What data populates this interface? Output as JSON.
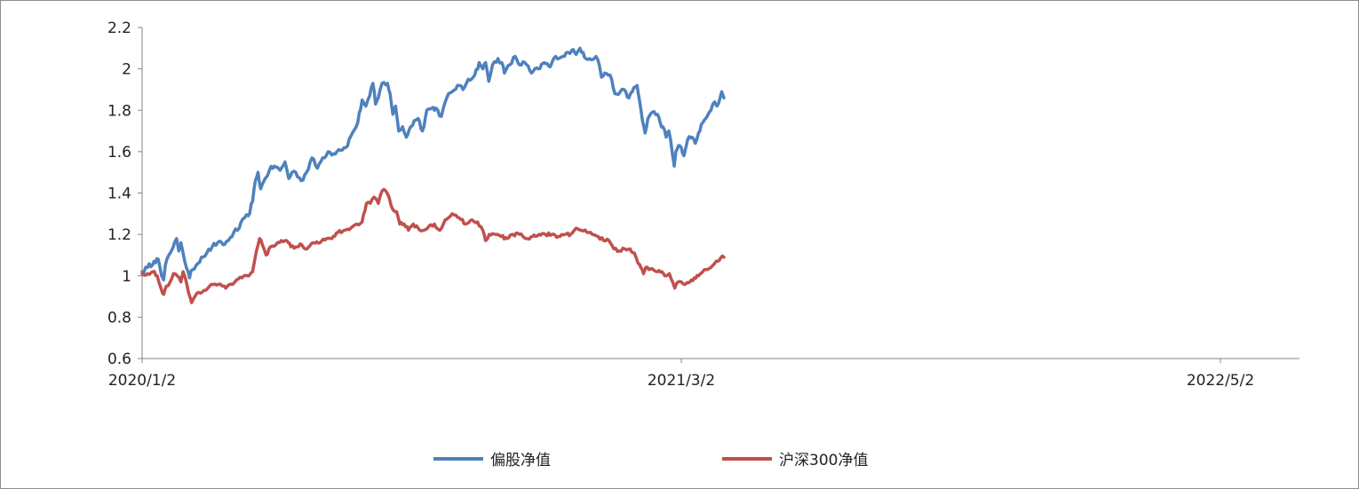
{
  "chart_data": {
    "type": "line",
    "x_tick_labels": [
      "2020/1/2",
      "2021/3/2",
      "2022/5/2"
    ],
    "y_tick_labels": [
      "0.6",
      "0.8",
      "1",
      "1.2",
      "1.4",
      "1.6",
      "1.8",
      "2",
      "2.2"
    ],
    "ylim": [
      0.6,
      2.2
    ],
    "grid": false,
    "legend_position": "bottom",
    "series": [
      {
        "name": "偏股净值",
        "color": "#4f81bd",
        "anchors": [
          [
            0.0,
            1.02
          ],
          [
            0.01,
            1.04
          ],
          [
            0.022,
            1.07
          ],
          [
            0.03,
            1.08
          ],
          [
            0.036,
            1.0
          ],
          [
            0.04,
            0.98
          ],
          [
            0.043,
            1.05
          ],
          [
            0.052,
            1.11
          ],
          [
            0.06,
            1.16
          ],
          [
            0.064,
            1.18
          ],
          [
            0.068,
            1.12
          ],
          [
            0.072,
            1.16
          ],
          [
            0.076,
            1.11
          ],
          [
            0.082,
            1.04
          ],
          [
            0.088,
            0.99
          ],
          [
            0.093,
            1.03
          ],
          [
            0.1,
            1.05
          ],
          [
            0.11,
            1.09
          ],
          [
            0.12,
            1.11
          ],
          [
            0.13,
            1.14
          ],
          [
            0.14,
            1.16
          ],
          [
            0.15,
            1.15
          ],
          [
            0.16,
            1.17
          ],
          [
            0.17,
            1.21
          ],
          [
            0.18,
            1.23
          ],
          [
            0.19,
            1.28
          ],
          [
            0.197,
            1.29
          ],
          [
            0.205,
            1.36
          ],
          [
            0.21,
            1.46
          ],
          [
            0.215,
            1.5
          ],
          [
            0.22,
            1.42
          ],
          [
            0.228,
            1.47
          ],
          [
            0.236,
            1.51
          ],
          [
            0.245,
            1.53
          ],
          [
            0.256,
            1.51
          ],
          [
            0.265,
            1.55
          ],
          [
            0.272,
            1.47
          ],
          [
            0.278,
            1.5
          ],
          [
            0.285,
            1.5
          ],
          [
            0.295,
            1.46
          ],
          [
            0.305,
            1.5
          ],
          [
            0.315,
            1.57
          ],
          [
            0.325,
            1.52
          ],
          [
            0.335,
            1.57
          ],
          [
            0.345,
            1.6
          ],
          [
            0.355,
            1.59
          ],
          [
            0.365,
            1.61
          ],
          [
            0.378,
            1.62
          ],
          [
            0.39,
            1.69
          ],
          [
            0.4,
            1.74
          ],
          [
            0.408,
            1.85
          ],
          [
            0.415,
            1.82
          ],
          [
            0.422,
            1.87
          ],
          [
            0.428,
            1.93
          ],
          [
            0.433,
            1.83
          ],
          [
            0.438,
            1.86
          ],
          [
            0.445,
            1.93
          ],
          [
            0.455,
            1.93
          ],
          [
            0.46,
            1.88
          ],
          [
            0.465,
            1.78
          ],
          [
            0.47,
            1.82
          ],
          [
            0.476,
            1.7
          ],
          [
            0.483,
            1.72
          ],
          [
            0.49,
            1.67
          ],
          [
            0.498,
            1.72
          ],
          [
            0.505,
            1.75
          ],
          [
            0.512,
            1.76
          ],
          [
            0.52,
            1.7
          ],
          [
            0.528,
            1.8
          ],
          [
            0.537,
            1.81
          ],
          [
            0.545,
            1.81
          ],
          [
            0.555,
            1.77
          ],
          [
            0.565,
            1.86
          ],
          [
            0.575,
            1.89
          ],
          [
            0.585,
            1.92
          ],
          [
            0.595,
            1.9
          ],
          [
            0.605,
            1.95
          ],
          [
            0.617,
            1.97
          ],
          [
            0.625,
            2.03
          ],
          [
            0.632,
            2.0
          ],
          [
            0.637,
            2.03
          ],
          [
            0.643,
            1.94
          ],
          [
            0.65,
            2.02
          ],
          [
            0.66,
            2.05
          ],
          [
            0.667,
            2.03
          ],
          [
            0.672,
            1.98
          ],
          [
            0.682,
            2.02
          ],
          [
            0.692,
            2.06
          ],
          [
            0.7,
            2.02
          ],
          [
            0.71,
            2.03
          ],
          [
            0.722,
            1.98
          ],
          [
            0.735,
            2.0
          ],
          [
            0.746,
            2.03
          ],
          [
            0.757,
            2.01
          ],
          [
            0.767,
            2.06
          ],
          [
            0.78,
            2.06
          ],
          [
            0.79,
            2.08
          ],
          [
            0.797,
            2.09
          ],
          [
            0.805,
            2.07
          ],
          [
            0.812,
            2.1
          ],
          [
            0.818,
            2.08
          ],
          [
            0.823,
            2.05
          ],
          [
            0.83,
            2.05
          ],
          [
            0.842,
            2.06
          ],
          [
            0.848,
            2.02
          ],
          [
            0.852,
            1.96
          ],
          [
            0.858,
            1.98
          ],
          [
            0.868,
            1.97
          ],
          [
            0.877,
            1.88
          ],
          [
            0.887,
            1.89
          ],
          [
            0.897,
            1.89
          ],
          [
            0.903,
            1.86
          ],
          [
            0.909,
            1.89
          ],
          [
            0.918,
            1.92
          ],
          [
            0.923,
            1.84
          ],
          [
            0.928,
            1.75
          ],
          [
            0.933,
            1.69
          ],
          [
            0.938,
            1.76
          ],
          [
            0.946,
            1.79
          ],
          [
            0.956,
            1.78
          ],
          [
            0.961,
            1.74
          ],
          [
            0.966,
            1.72
          ],
          [
            0.972,
            1.67
          ],
          [
            0.977,
            1.7
          ],
          [
            0.983,
            1.6
          ],
          [
            0.987,
            1.53
          ],
          [
            0.99,
            1.6
          ],
          [
            0.995,
            1.63
          ],
          [
            1.0,
            1.62
          ],
          [
            1.005,
            1.58
          ],
          [
            1.012,
            1.66
          ],
          [
            1.02,
            1.67
          ],
          [
            1.026,
            1.64
          ],
          [
            1.032,
            1.69
          ],
          [
            1.04,
            1.74
          ],
          [
            1.048,
            1.77
          ],
          [
            1.055,
            1.8
          ],
          [
            1.062,
            1.84
          ],
          [
            1.066,
            1.82
          ],
          [
            1.072,
            1.86
          ],
          [
            1.075,
            1.89
          ],
          [
            1.079,
            1.86
          ]
        ]
      },
      {
        "name": "沪深300净值",
        "color": "#c0504d",
        "anchors": [
          [
            0.0,
            1.01
          ],
          [
            0.01,
            1.01
          ],
          [
            0.02,
            1.02
          ],
          [
            0.028,
            1.0
          ],
          [
            0.035,
            0.94
          ],
          [
            0.04,
            0.91
          ],
          [
            0.045,
            0.95
          ],
          [
            0.052,
            0.97
          ],
          [
            0.058,
            1.01
          ],
          [
            0.065,
            1.0
          ],
          [
            0.072,
            0.97
          ],
          [
            0.076,
            1.02
          ],
          [
            0.08,
            0.99
          ],
          [
            0.086,
            0.92
          ],
          [
            0.092,
            0.87
          ],
          [
            0.098,
            0.9
          ],
          [
            0.105,
            0.92
          ],
          [
            0.115,
            0.93
          ],
          [
            0.125,
            0.95
          ],
          [
            0.135,
            0.96
          ],
          [
            0.145,
            0.96
          ],
          [
            0.155,
            0.94
          ],
          [
            0.165,
            0.96
          ],
          [
            0.175,
            0.98
          ],
          [
            0.185,
            0.99
          ],
          [
            0.195,
            1.0
          ],
          [
            0.205,
            1.02
          ],
          [
            0.212,
            1.12
          ],
          [
            0.218,
            1.18
          ],
          [
            0.223,
            1.15
          ],
          [
            0.23,
            1.1
          ],
          [
            0.238,
            1.14
          ],
          [
            0.248,
            1.15
          ],
          [
            0.258,
            1.17
          ],
          [
            0.268,
            1.17
          ],
          [
            0.276,
            1.14
          ],
          [
            0.285,
            1.14
          ],
          [
            0.296,
            1.15
          ],
          [
            0.306,
            1.13
          ],
          [
            0.318,
            1.16
          ],
          [
            0.33,
            1.16
          ],
          [
            0.342,
            1.18
          ],
          [
            0.352,
            1.18
          ],
          [
            0.363,
            1.21
          ],
          [
            0.375,
            1.22
          ],
          [
            0.387,
            1.23
          ],
          [
            0.398,
            1.25
          ],
          [
            0.408,
            1.26
          ],
          [
            0.416,
            1.35
          ],
          [
            0.423,
            1.35
          ],
          [
            0.43,
            1.38
          ],
          [
            0.438,
            1.35
          ],
          [
            0.445,
            1.41
          ],
          [
            0.452,
            1.41
          ],
          [
            0.458,
            1.38
          ],
          [
            0.465,
            1.32
          ],
          [
            0.472,
            1.31
          ],
          [
            0.478,
            1.25
          ],
          [
            0.486,
            1.25
          ],
          [
            0.494,
            1.22
          ],
          [
            0.503,
            1.25
          ],
          [
            0.512,
            1.23
          ],
          [
            0.522,
            1.22
          ],
          [
            0.532,
            1.24
          ],
          [
            0.542,
            1.25
          ],
          [
            0.552,
            1.22
          ],
          [
            0.562,
            1.27
          ],
          [
            0.575,
            1.3
          ],
          [
            0.588,
            1.28
          ],
          [
            0.6,
            1.25
          ],
          [
            0.612,
            1.27
          ],
          [
            0.622,
            1.26
          ],
          [
            0.632,
            1.22
          ],
          [
            0.637,
            1.17
          ],
          [
            0.644,
            1.2
          ],
          [
            0.655,
            1.2
          ],
          [
            0.666,
            1.19
          ],
          [
            0.677,
            1.18
          ],
          [
            0.688,
            1.2
          ],
          [
            0.7,
            1.2
          ],
          [
            0.712,
            1.18
          ],
          [
            0.724,
            1.19
          ],
          [
            0.736,
            1.2
          ],
          [
            0.748,
            1.2
          ],
          [
            0.76,
            1.2
          ],
          [
            0.772,
            1.19
          ],
          [
            0.784,
            1.2
          ],
          [
            0.795,
            1.2
          ],
          [
            0.805,
            1.23
          ],
          [
            0.815,
            1.22
          ],
          [
            0.825,
            1.21
          ],
          [
            0.835,
            1.2
          ],
          [
            0.846,
            1.19
          ],
          [
            0.856,
            1.17
          ],
          [
            0.866,
            1.17
          ],
          [
            0.875,
            1.13
          ],
          [
            0.885,
            1.12
          ],
          [
            0.895,
            1.13
          ],
          [
            0.905,
            1.13
          ],
          [
            0.913,
            1.11
          ],
          [
            0.92,
            1.06
          ],
          [
            0.925,
            1.04
          ],
          [
            0.93,
            1.01
          ],
          [
            0.934,
            1.04
          ],
          [
            0.94,
            1.03
          ],
          [
            0.948,
            1.03
          ],
          [
            0.956,
            1.02
          ],
          [
            0.964,
            1.02
          ],
          [
            0.972,
            1.0
          ],
          [
            0.978,
            1.01
          ],
          [
            0.984,
            0.97
          ],
          [
            0.988,
            0.94
          ],
          [
            0.994,
            0.97
          ],
          [
            1.0,
            0.97
          ],
          [
            1.008,
            0.96
          ],
          [
            1.016,
            0.97
          ],
          [
            1.024,
            0.99
          ],
          [
            1.032,
            1.0
          ],
          [
            1.04,
            1.02
          ],
          [
            1.048,
            1.03
          ],
          [
            1.055,
            1.04
          ],
          [
            1.062,
            1.06
          ],
          [
            1.068,
            1.07
          ],
          [
            1.074,
            1.09
          ],
          [
            1.079,
            1.09
          ]
        ]
      }
    ]
  }
}
